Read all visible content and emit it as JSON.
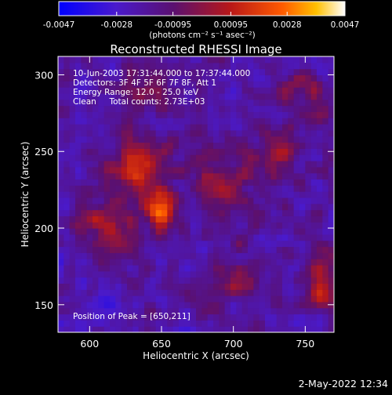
{
  "chart_data": {
    "type": "heatmap",
    "title": "Reconstructed RHESSI Image",
    "xlabel": "Heliocentric X (arcsec)",
    "ylabel": "Heliocentric Y (arcsec)",
    "xlim": [
      578,
      770
    ],
    "ylim": [
      132,
      312
    ],
    "x_ticks": [
      600,
      650,
      700,
      750
    ],
    "y_ticks": [
      150,
      200,
      250,
      300
    ],
    "colorbar": {
      "ticks": [
        -0.0047,
        -0.0028,
        -0.00095,
        0.00095,
        0.0028,
        0.0047
      ],
      "tick_labels": [
        "-0.0047",
        "-0.0028",
        "-0.00095",
        "0.00095",
        "0.0028",
        "0.0047"
      ],
      "units": "(photons cm⁻² s⁻¹ asec⁻²)",
      "range": [
        -0.0047,
        0.0047
      ],
      "colormap": "blue-purple-red-orange-yellow-white"
    },
    "annotations": {
      "time_range": "10-Jun-2003 17:31:44.000 to 17:37:44.000",
      "detectors": "Detectors: 3F 4F 5F 6F 7F 8F, Att 1",
      "energy_range": "Energy Range: 12.0 - 25.0 keV",
      "method_counts": "Clean     Total counts: 2.73E+03",
      "peak_position": "Position of Peak = [650,211]"
    },
    "peak": {
      "x": 650,
      "y": 211
    },
    "sources": [
      {
        "x": 650,
        "y": 211,
        "amp": 0.0047,
        "sx": 7,
        "sy": 10
      },
      {
        "x": 633,
        "y": 240,
        "amp": 0.0034,
        "sx": 12,
        "sy": 14
      },
      {
        "x": 612,
        "y": 200,
        "amp": 0.0022,
        "sx": 14,
        "sy": 12
      },
      {
        "x": 690,
        "y": 230,
        "amp": 0.0023,
        "sx": 14,
        "sy": 14
      },
      {
        "x": 730,
        "y": 250,
        "amp": 0.002,
        "sx": 10,
        "sy": 14
      },
      {
        "x": 700,
        "y": 165,
        "amp": 0.0016,
        "sx": 14,
        "sy": 10
      },
      {
        "x": 762,
        "y": 165,
        "amp": 0.003,
        "sx": 7,
        "sy": 14
      },
      {
        "x": 750,
        "y": 287,
        "amp": 0.0017,
        "sx": 10,
        "sy": 12
      },
      {
        "x": 640,
        "y": 290,
        "amp": 0.0016,
        "sx": 14,
        "sy": 10
      }
    ]
  },
  "footer": {
    "date": "2-May-2022 12:34"
  }
}
